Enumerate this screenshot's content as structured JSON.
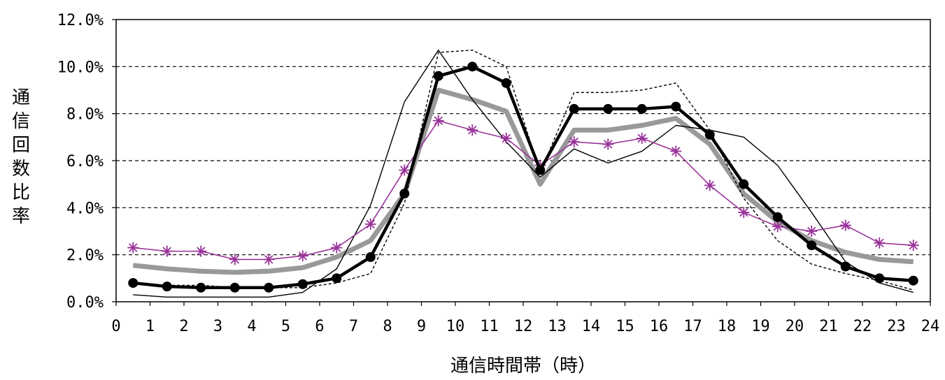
{
  "chart_data": {
    "type": "line",
    "xlabel": "通信時間帯（時）",
    "ylabel": "通信回数比率",
    "xlim": [
      0,
      24
    ],
    "ylim": [
      0,
      12
    ],
    "grid": "horizontal dashed",
    "x_ticks": [
      "0",
      "1",
      "2",
      "3",
      "4",
      "5",
      "6",
      "7",
      "8",
      "9",
      "10",
      "11",
      "12",
      "13",
      "14",
      "15",
      "16",
      "17",
      "18",
      "19",
      "20",
      "21",
      "22",
      "23",
      "24"
    ],
    "y_ticks": [
      "0.0%",
      "2.0%",
      "4.0%",
      "6.0%",
      "8.0%",
      "10.0%",
      "12.0%"
    ],
    "x": [
      0.5,
      1.5,
      2.5,
      3.5,
      4.5,
      5.5,
      6.5,
      7.5,
      8.5,
      9.5,
      10.5,
      11.5,
      12.5,
      13.5,
      14.5,
      15.5,
      16.5,
      17.5,
      18.5,
      19.5,
      20.5,
      21.5,
      22.5,
      23.5
    ],
    "series": [
      {
        "style": "thick black line with circle markers",
        "color": "#000000",
        "values": [
          0.8,
          0.65,
          0.6,
          0.6,
          0.6,
          0.75,
          1.0,
          1.9,
          4.6,
          9.6,
          10.0,
          9.3,
          5.6,
          8.2,
          8.2,
          8.2,
          8.3,
          7.1,
          5.0,
          3.6,
          2.4,
          1.5,
          1.0,
          0.9
        ]
      },
      {
        "style": "thick grey line",
        "color": "#999999",
        "values": [
          1.55,
          1.4,
          1.3,
          1.25,
          1.3,
          1.45,
          1.9,
          2.6,
          4.6,
          9.0,
          8.6,
          8.1,
          5.0,
          7.3,
          7.3,
          7.5,
          7.8,
          6.7,
          4.6,
          3.4,
          2.6,
          2.1,
          1.8,
          1.7
        ]
      },
      {
        "style": "purple line with asterisk markers",
        "color": "#993399",
        "values": [
          2.3,
          2.15,
          2.15,
          1.8,
          1.8,
          1.95,
          2.3,
          3.3,
          5.6,
          7.7,
          7.3,
          6.95,
          5.8,
          6.8,
          6.7,
          6.95,
          6.4,
          4.95,
          3.8,
          3.2,
          3.0,
          3.25,
          2.5,
          2.4
        ]
      },
      {
        "style": "thin black solid line",
        "color": "#000000",
        "values": [
          0.3,
          0.2,
          0.2,
          0.2,
          0.2,
          0.4,
          1.4,
          4.1,
          8.5,
          10.7,
          8.6,
          6.8,
          5.3,
          6.5,
          5.9,
          6.4,
          7.5,
          7.3,
          7.0,
          5.8,
          3.8,
          1.7,
          0.8,
          0.4
        ]
      },
      {
        "style": "thin black dashed line",
        "color": "#000000",
        "values": [
          0.8,
          0.7,
          0.7,
          0.6,
          0.6,
          0.6,
          0.8,
          1.2,
          4.2,
          10.6,
          10.7,
          10.0,
          5.5,
          8.9,
          8.9,
          9.0,
          9.3,
          7.3,
          4.4,
          2.6,
          1.6,
          1.2,
          0.9,
          0.5
        ]
      }
    ]
  }
}
